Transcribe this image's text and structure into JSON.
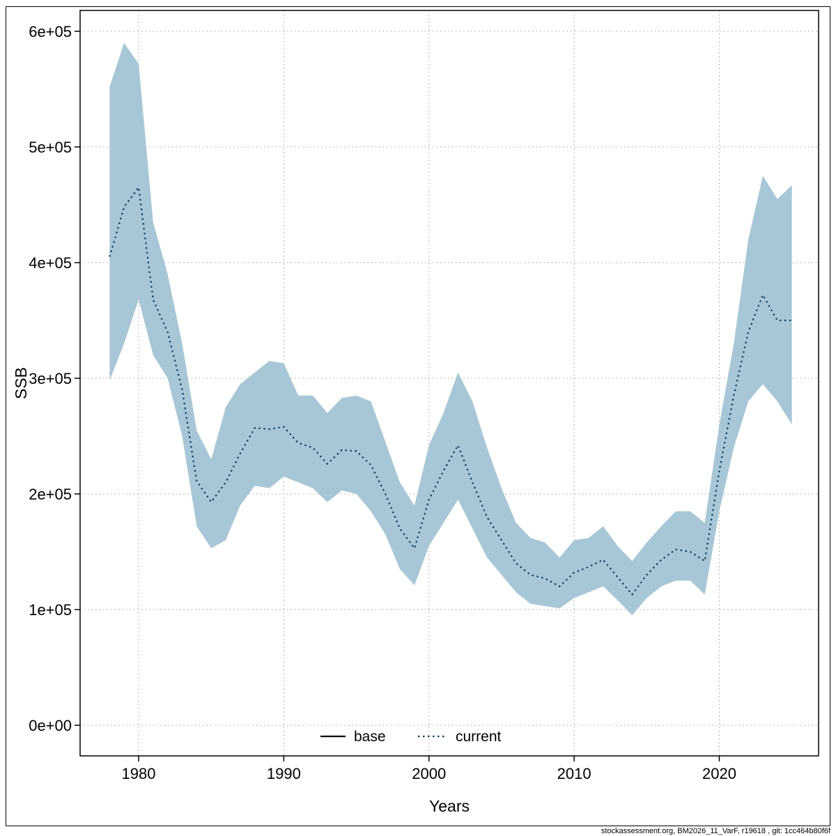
{
  "footer": {
    "text": "stockassessment.org, BM2026_11_VarF, r19618 , git: 1cc464b80f6f"
  },
  "chart_data": {
    "type": "line",
    "title": "",
    "xlabel": "Years",
    "ylabel": "SSB",
    "grid": true,
    "legend_position": "bottom-center-inside",
    "xlim": [
      1975.97,
      2026.84
    ],
    "ylim": [
      -26500,
      618000
    ],
    "x_ticks": [
      1980,
      1990,
      2000,
      2010,
      2020
    ],
    "y_ticks": [
      {
        "value": 0,
        "label": "0e+00"
      },
      {
        "value": 100000,
        "label": "1e+05"
      },
      {
        "value": 200000,
        "label": "2e+05"
      },
      {
        "value": 300000,
        "label": "3e+05"
      },
      {
        "value": 400000,
        "label": "4e+05"
      },
      {
        "value": 500000,
        "label": "5e+05"
      },
      {
        "value": 600000,
        "label": "6e+05"
      }
    ],
    "colors": {
      "band": "#a8c7d6",
      "current_line": "#123f5b",
      "base_line": "#000000",
      "grid": "#9a9a9a"
    },
    "x": [
      1978,
      1979,
      1980,
      1981,
      1982,
      1983,
      1984,
      1985,
      1986,
      1987,
      1988,
      1989,
      1990,
      1991,
      1992,
      1993,
      1994,
      1995,
      1996,
      1997,
      1998,
      1999,
      2000,
      2001,
      2002,
      2003,
      2004,
      2005,
      2006,
      2007,
      2008,
      2009,
      2010,
      2011,
      2012,
      2013,
      2014,
      2015,
      2016,
      2017,
      2018,
      2019,
      2020,
      2021,
      2022,
      2023,
      2024,
      2025
    ],
    "series": [
      {
        "name": "current",
        "style": "dotted",
        "values": [
          405000,
          448000,
          465000,
          368000,
          340000,
          290000,
          211000,
          193000,
          210000,
          235000,
          257000,
          256000,
          258000,
          244000,
          240000,
          226000,
          238000,
          237000,
          225000,
          200000,
          170000,
          153000,
          195000,
          220000,
          242000,
          210000,
          180000,
          160000,
          140000,
          130000,
          127000,
          120000,
          132000,
          137000,
          143000,
          128000,
          113000,
          130000,
          143000,
          152000,
          150000,
          142000,
          220000,
          285000,
          340000,
          372000,
          350000,
          350000
        ]
      },
      {
        "name": "current_lower",
        "style": "band-edge",
        "values": [
          298000,
          330000,
          368000,
          320000,
          300000,
          250000,
          172000,
          153000,
          160000,
          190000,
          207000,
          205000,
          215000,
          210000,
          205000,
          193000,
          203000,
          200000,
          185000,
          165000,
          135000,
          121000,
          155000,
          175000,
          195000,
          170000,
          145000,
          130000,
          115000,
          105000,
          103000,
          101000,
          110000,
          115000,
          120000,
          108000,
          95000,
          110000,
          120000,
          125000,
          125000,
          113000,
          185000,
          240000,
          280000,
          295000,
          280000,
          260000
        ]
      },
      {
        "name": "current_upper",
        "style": "band-edge",
        "values": [
          552000,
          590000,
          572000,
          435000,
          390000,
          330000,
          255000,
          230000,
          275000,
          295000,
          305000,
          315000,
          313000,
          285000,
          285000,
          270000,
          283000,
          285000,
          280000,
          245000,
          210000,
          190000,
          242000,
          270000,
          305000,
          280000,
          240000,
          205000,
          175000,
          162000,
          158000,
          145000,
          160000,
          162000,
          172000,
          155000,
          142000,
          158000,
          172000,
          185000,
          185000,
          175000,
          260000,
          330000,
          420000,
          475000,
          455000,
          467000
        ]
      }
    ],
    "legend_entries": [
      {
        "label": "base",
        "line": "solid",
        "color": "#000000"
      },
      {
        "label": "current",
        "line": "dotted",
        "color": "#123f5b"
      }
    ]
  }
}
